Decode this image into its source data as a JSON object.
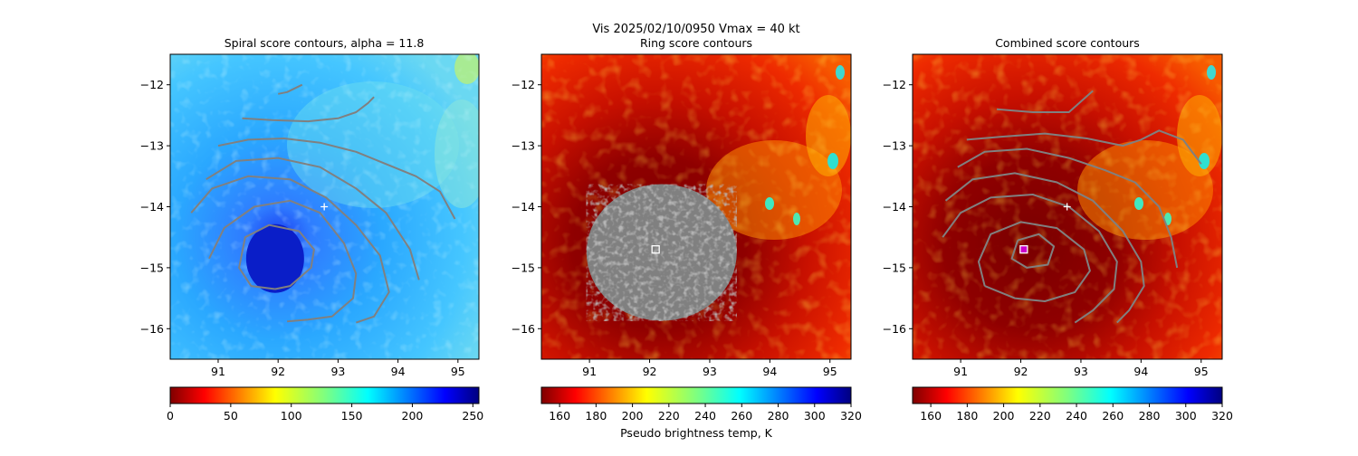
{
  "suptitle": "Vis  2025/02/10/0950    Vmax = 40 kt",
  "x_ticks": [
    "91",
    "92",
    "93",
    "94",
    "95"
  ],
  "y_ticks": [
    "−12",
    "−13",
    "−14",
    "−15",
    "−16"
  ],
  "colormap": "jet",
  "center_marker_color": "#ffffff",
  "contour_color": "#808080",
  "chart_data": [
    {
      "type": "heatmap",
      "title": "Spiral score contours, alpha = 11.8",
      "xlim": [
        90.2,
        95.35
      ],
      "ylim": [
        -16.5,
        -11.5
      ],
      "grid": false,
      "colormap": "jet_r",
      "colorbar": {
        "ticks": [
          "0",
          "50",
          "100",
          "150",
          "200",
          "250"
        ],
        "range": [
          0,
          255
        ],
        "label": ""
      },
      "center_marker": {
        "x": 92.77,
        "y": -14.0,
        "symbol": "+"
      },
      "eye": {
        "x": 91.95,
        "y": -14.85
      },
      "contours": [
        [
          [
            92.0,
            -12.15
          ],
          [
            92.15,
            -12.12
          ],
          [
            92.4,
            -12.0
          ]
        ],
        [
          [
            91.4,
            -12.55
          ],
          [
            91.9,
            -12.58
          ],
          [
            92.5,
            -12.6
          ],
          [
            93.0,
            -12.55
          ],
          [
            93.3,
            -12.45
          ],
          [
            93.5,
            -12.3
          ],
          [
            93.6,
            -12.2
          ]
        ],
        [
          [
            91.0,
            -13.0
          ],
          [
            91.5,
            -12.9
          ],
          [
            92.1,
            -12.88
          ],
          [
            92.7,
            -12.95
          ],
          [
            93.3,
            -13.1
          ],
          [
            93.8,
            -13.3
          ],
          [
            94.3,
            -13.5
          ],
          [
            94.7,
            -13.75
          ],
          [
            94.95,
            -14.2
          ]
        ],
        [
          [
            90.8,
            -13.55
          ],
          [
            91.3,
            -13.25
          ],
          [
            92.0,
            -13.2
          ],
          [
            92.7,
            -13.35
          ],
          [
            93.3,
            -13.7
          ],
          [
            93.8,
            -14.1
          ],
          [
            94.2,
            -14.7
          ],
          [
            94.35,
            -15.2
          ]
        ],
        [
          [
            90.55,
            -14.1
          ],
          [
            90.9,
            -13.7
          ],
          [
            91.5,
            -13.5
          ],
          [
            92.2,
            -13.55
          ],
          [
            92.8,
            -13.85
          ],
          [
            93.3,
            -14.3
          ],
          [
            93.7,
            -14.8
          ],
          [
            93.85,
            -15.4
          ],
          [
            93.6,
            -15.8
          ],
          [
            93.3,
            -15.9
          ]
        ],
        [
          [
            90.85,
            -14.85
          ],
          [
            91.1,
            -14.35
          ],
          [
            91.6,
            -14.0
          ],
          [
            92.2,
            -13.9
          ],
          [
            92.7,
            -14.1
          ],
          [
            93.1,
            -14.6
          ],
          [
            93.3,
            -15.1
          ],
          [
            93.25,
            -15.5
          ],
          [
            92.9,
            -15.8
          ],
          [
            92.5,
            -15.85
          ],
          [
            92.15,
            -15.88
          ]
        ],
        [
          [
            91.95,
            -15.35
          ],
          [
            91.55,
            -15.3
          ],
          [
            91.35,
            -15.0
          ],
          [
            91.45,
            -14.5
          ],
          [
            91.85,
            -14.3
          ],
          [
            92.35,
            -14.4
          ],
          [
            92.6,
            -14.7
          ],
          [
            92.55,
            -15.0
          ],
          [
            92.2,
            -15.3
          ],
          [
            91.95,
            -15.35
          ]
        ]
      ]
    },
    {
      "type": "heatmap",
      "title": "Ring score contours",
      "xlim": [
        90.2,
        95.35
      ],
      "ylim": [
        -16.5,
        -11.5
      ],
      "grid": false,
      "colormap": "jet_r",
      "colorbar": {
        "ticks": [
          "160",
          "180",
          "200",
          "220",
          "240",
          "260",
          "280",
          "300",
          "320"
        ],
        "range": [
          150,
          320
        ],
        "label": "Pseudo brightness temp, K"
      },
      "center_marker": {
        "x": 92.1,
        "y": -14.7,
        "symbol": "square"
      },
      "ring_region": {
        "x": 92.2,
        "y": -14.75,
        "rx": 1.25,
        "ry": 1.12
      },
      "contours": []
    },
    {
      "type": "heatmap",
      "title": "Combined score contours",
      "xlim": [
        90.2,
        95.35
      ],
      "ylim": [
        -16.5,
        -11.5
      ],
      "grid": false,
      "colormap": "jet_r",
      "colorbar": {
        "ticks": [
          "160",
          "180",
          "200",
          "220",
          "240",
          "260",
          "280",
          "300",
          "320"
        ],
        "range": [
          150,
          320
        ],
        "label": ""
      },
      "center_marker": {
        "x": 92.77,
        "y": -14.0,
        "symbol": "+"
      },
      "secondary_marker": {
        "x": 92.05,
        "y": -14.7,
        "symbol": "square",
        "color": "#cc00cc"
      },
      "contours": [
        [
          [
            91.6,
            -12.4
          ],
          [
            92.2,
            -12.45
          ],
          [
            92.8,
            -12.45
          ],
          [
            93.2,
            -12.1
          ]
        ],
        [
          [
            91.1,
            -12.9
          ],
          [
            91.7,
            -12.85
          ],
          [
            92.4,
            -12.8
          ],
          [
            93.1,
            -12.88
          ],
          [
            93.7,
            -13.0
          ],
          [
            94.0,
            -12.9
          ],
          [
            94.3,
            -12.75
          ],
          [
            94.7,
            -12.9
          ],
          [
            95.0,
            -13.3
          ]
        ],
        [
          [
            90.95,
            -13.35
          ],
          [
            91.4,
            -13.1
          ],
          [
            92.1,
            -13.05
          ],
          [
            92.8,
            -13.2
          ],
          [
            93.4,
            -13.4
          ],
          [
            93.9,
            -13.6
          ],
          [
            94.3,
            -14.0
          ],
          [
            94.5,
            -14.5
          ],
          [
            94.6,
            -15.0
          ]
        ],
        [
          [
            90.75,
            -13.9
          ],
          [
            91.2,
            -13.55
          ],
          [
            91.9,
            -13.45
          ],
          [
            92.6,
            -13.6
          ],
          [
            93.2,
            -13.9
          ],
          [
            93.7,
            -14.4
          ],
          [
            94.0,
            -14.9
          ],
          [
            94.05,
            -15.3
          ],
          [
            93.8,
            -15.7
          ],
          [
            93.6,
            -15.9
          ]
        ],
        [
          [
            90.7,
            -14.5
          ],
          [
            91.0,
            -14.1
          ],
          [
            91.5,
            -13.85
          ],
          [
            92.2,
            -13.8
          ],
          [
            92.8,
            -14.0
          ],
          [
            93.3,
            -14.4
          ],
          [
            93.6,
            -14.9
          ],
          [
            93.55,
            -15.35
          ],
          [
            93.2,
            -15.7
          ],
          [
            92.9,
            -15.9
          ]
        ],
        [
          [
            91.4,
            -15.3
          ],
          [
            91.3,
            -14.9
          ],
          [
            91.5,
            -14.45
          ],
          [
            92.0,
            -14.25
          ],
          [
            92.6,
            -14.35
          ],
          [
            93.05,
            -14.7
          ],
          [
            93.15,
            -15.05
          ],
          [
            92.9,
            -15.4
          ],
          [
            92.4,
            -15.55
          ],
          [
            91.9,
            -15.5
          ],
          [
            91.4,
            -15.3
          ]
        ],
        [
          [
            91.95,
            -14.55
          ],
          [
            92.3,
            -14.45
          ],
          [
            92.55,
            -14.65
          ],
          [
            92.45,
            -14.95
          ],
          [
            92.1,
            -15.0
          ],
          [
            91.85,
            -14.85
          ],
          [
            91.95,
            -14.55
          ]
        ]
      ]
    }
  ]
}
